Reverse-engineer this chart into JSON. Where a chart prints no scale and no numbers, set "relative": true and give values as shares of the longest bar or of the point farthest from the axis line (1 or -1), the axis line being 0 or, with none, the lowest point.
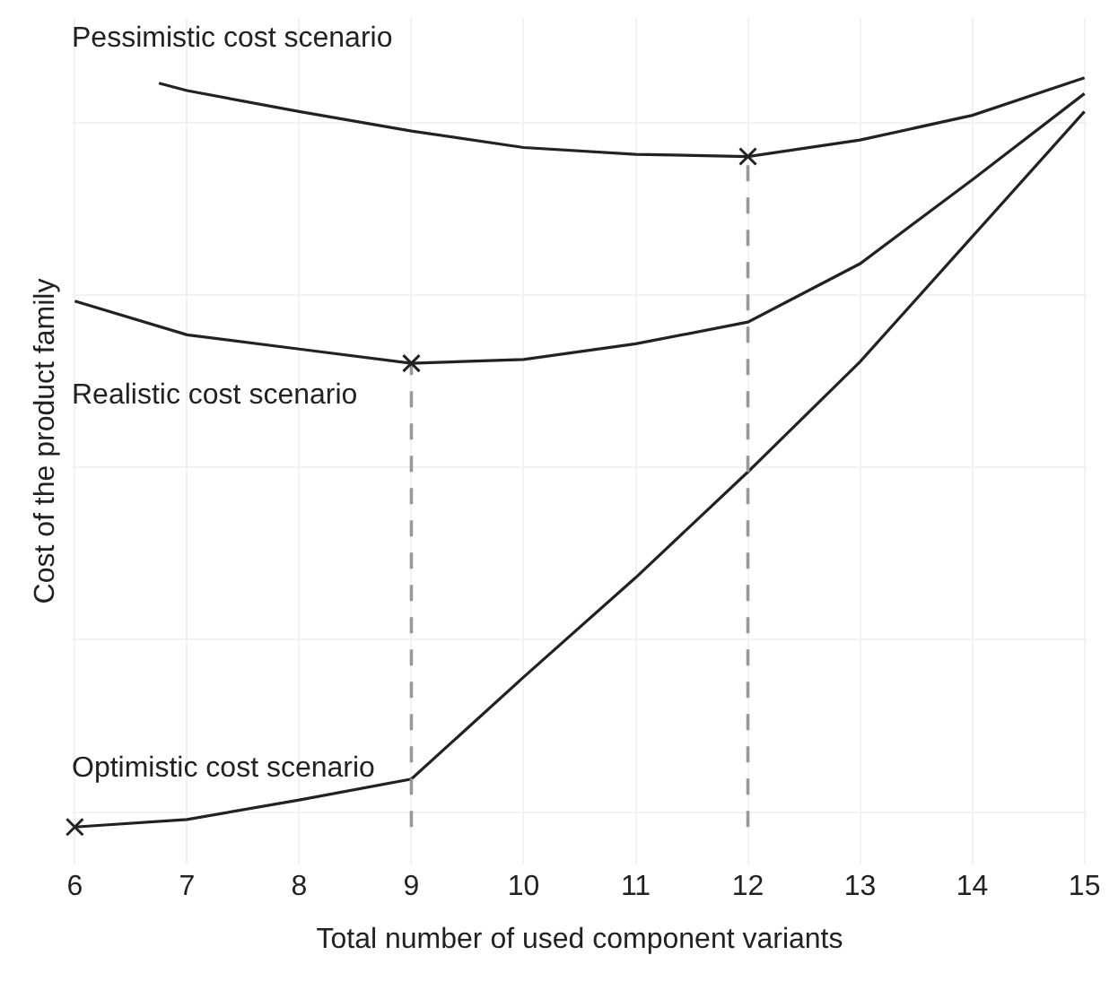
{
  "chart_data": {
    "type": "line",
    "relative": true,
    "xlabel": "Total number of used component variants",
    "ylabel": "Cost of the product family",
    "xlim": [
      6,
      15
    ],
    "xticks": [
      6,
      7,
      8,
      9,
      10,
      11,
      12,
      13,
      14,
      15
    ],
    "grid": true,
    "legend": false,
    "marker": "none",
    "line_style": "solid",
    "series": [
      {
        "name": "Pessimistic cost scenario",
        "color": "#222222",
        "x": [
          6.75,
          7,
          8,
          9,
          10,
          11,
          12,
          13,
          14,
          15
        ],
        "values": [
          0.993,
          0.983,
          0.955,
          0.929,
          0.907,
          0.898,
          0.895,
          0.917,
          0.95,
          1
        ]
      },
      {
        "name": "Realistic cost scenario",
        "color": "#222222",
        "x": [
          6,
          7,
          8,
          9,
          10,
          11,
          12,
          13,
          14,
          15
        ],
        "values": [
          0.702,
          0.657,
          0.638,
          0.619,
          0.624,
          0.645,
          0.674,
          0.752,
          0.864,
          0.979
        ]
      },
      {
        "name": "Optimistic cost scenario",
        "color": "#222222",
        "x": [
          6,
          7,
          8,
          9,
          10,
          11,
          12,
          13,
          14,
          15
        ],
        "values": [
          0,
          0.01,
          0.036,
          0.064,
          0.2,
          0.333,
          0.474,
          0.621,
          0.788,
          0.955
        ]
      },
      {
        "type": "line",
        "line_style": "dashed",
        "color": "#999999",
        "x": [
          9,
          9
        ],
        "values": [
          0,
          0.619
        ]
      },
      {
        "type": "line",
        "line_style": "dashed",
        "color": "#999999",
        "x": [
          12,
          12
        ],
        "values": [
          0,
          0.895
        ]
      },
      {
        "type": "scatter",
        "marker": "cross",
        "color": "#222222",
        "x": [
          6,
          9,
          12
        ],
        "values": [
          0,
          0.619,
          0.895
        ]
      }
    ]
  }
}
